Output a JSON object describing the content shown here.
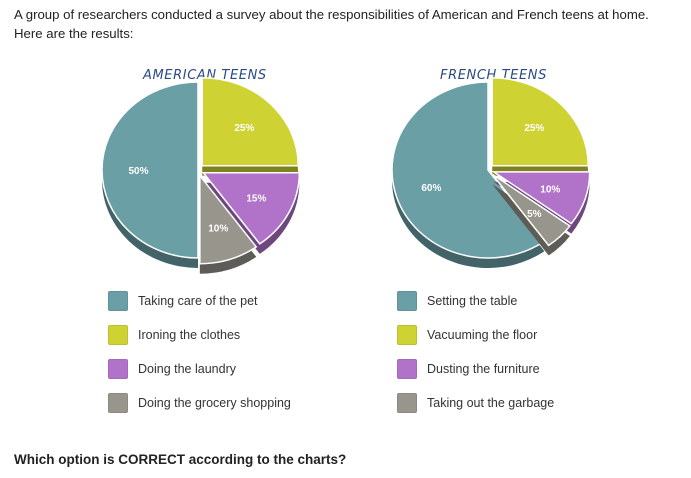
{
  "intro": "A group of researchers conducted a survey about the responsibilities of American and French teens at home. Here are the results:",
  "question": "Which option is CORRECT according to the charts?",
  "chart_data": [
    {
      "type": "pie",
      "title": "AMERICAN TEENS",
      "categories": [
        "Taking care of the pet",
        "Ironing the clothes",
        "Doing the laundry",
        "Doing the grocery shopping"
      ],
      "values": [
        50,
        25,
        15,
        10
      ],
      "labels": [
        "50%",
        "25%",
        "15%",
        "10%"
      ],
      "colors": [
        "#6a9fa6",
        "#cfd233",
        "#b073c9",
        "#97958c"
      ],
      "legend_position": "bottom"
    },
    {
      "type": "pie",
      "title": "FRENCH TEENS",
      "categories": [
        "Setting the table",
        "Vacuuming the floor",
        "Dusting the furniture",
        "Taking out the garbage"
      ],
      "values": [
        60,
        25,
        10,
        5
      ],
      "labels": [
        "60%",
        "25%",
        "10%",
        "5%"
      ],
      "colors": [
        "#6a9fa6",
        "#cfd233",
        "#b073c9",
        "#97958c"
      ],
      "legend_position": "bottom"
    }
  ]
}
